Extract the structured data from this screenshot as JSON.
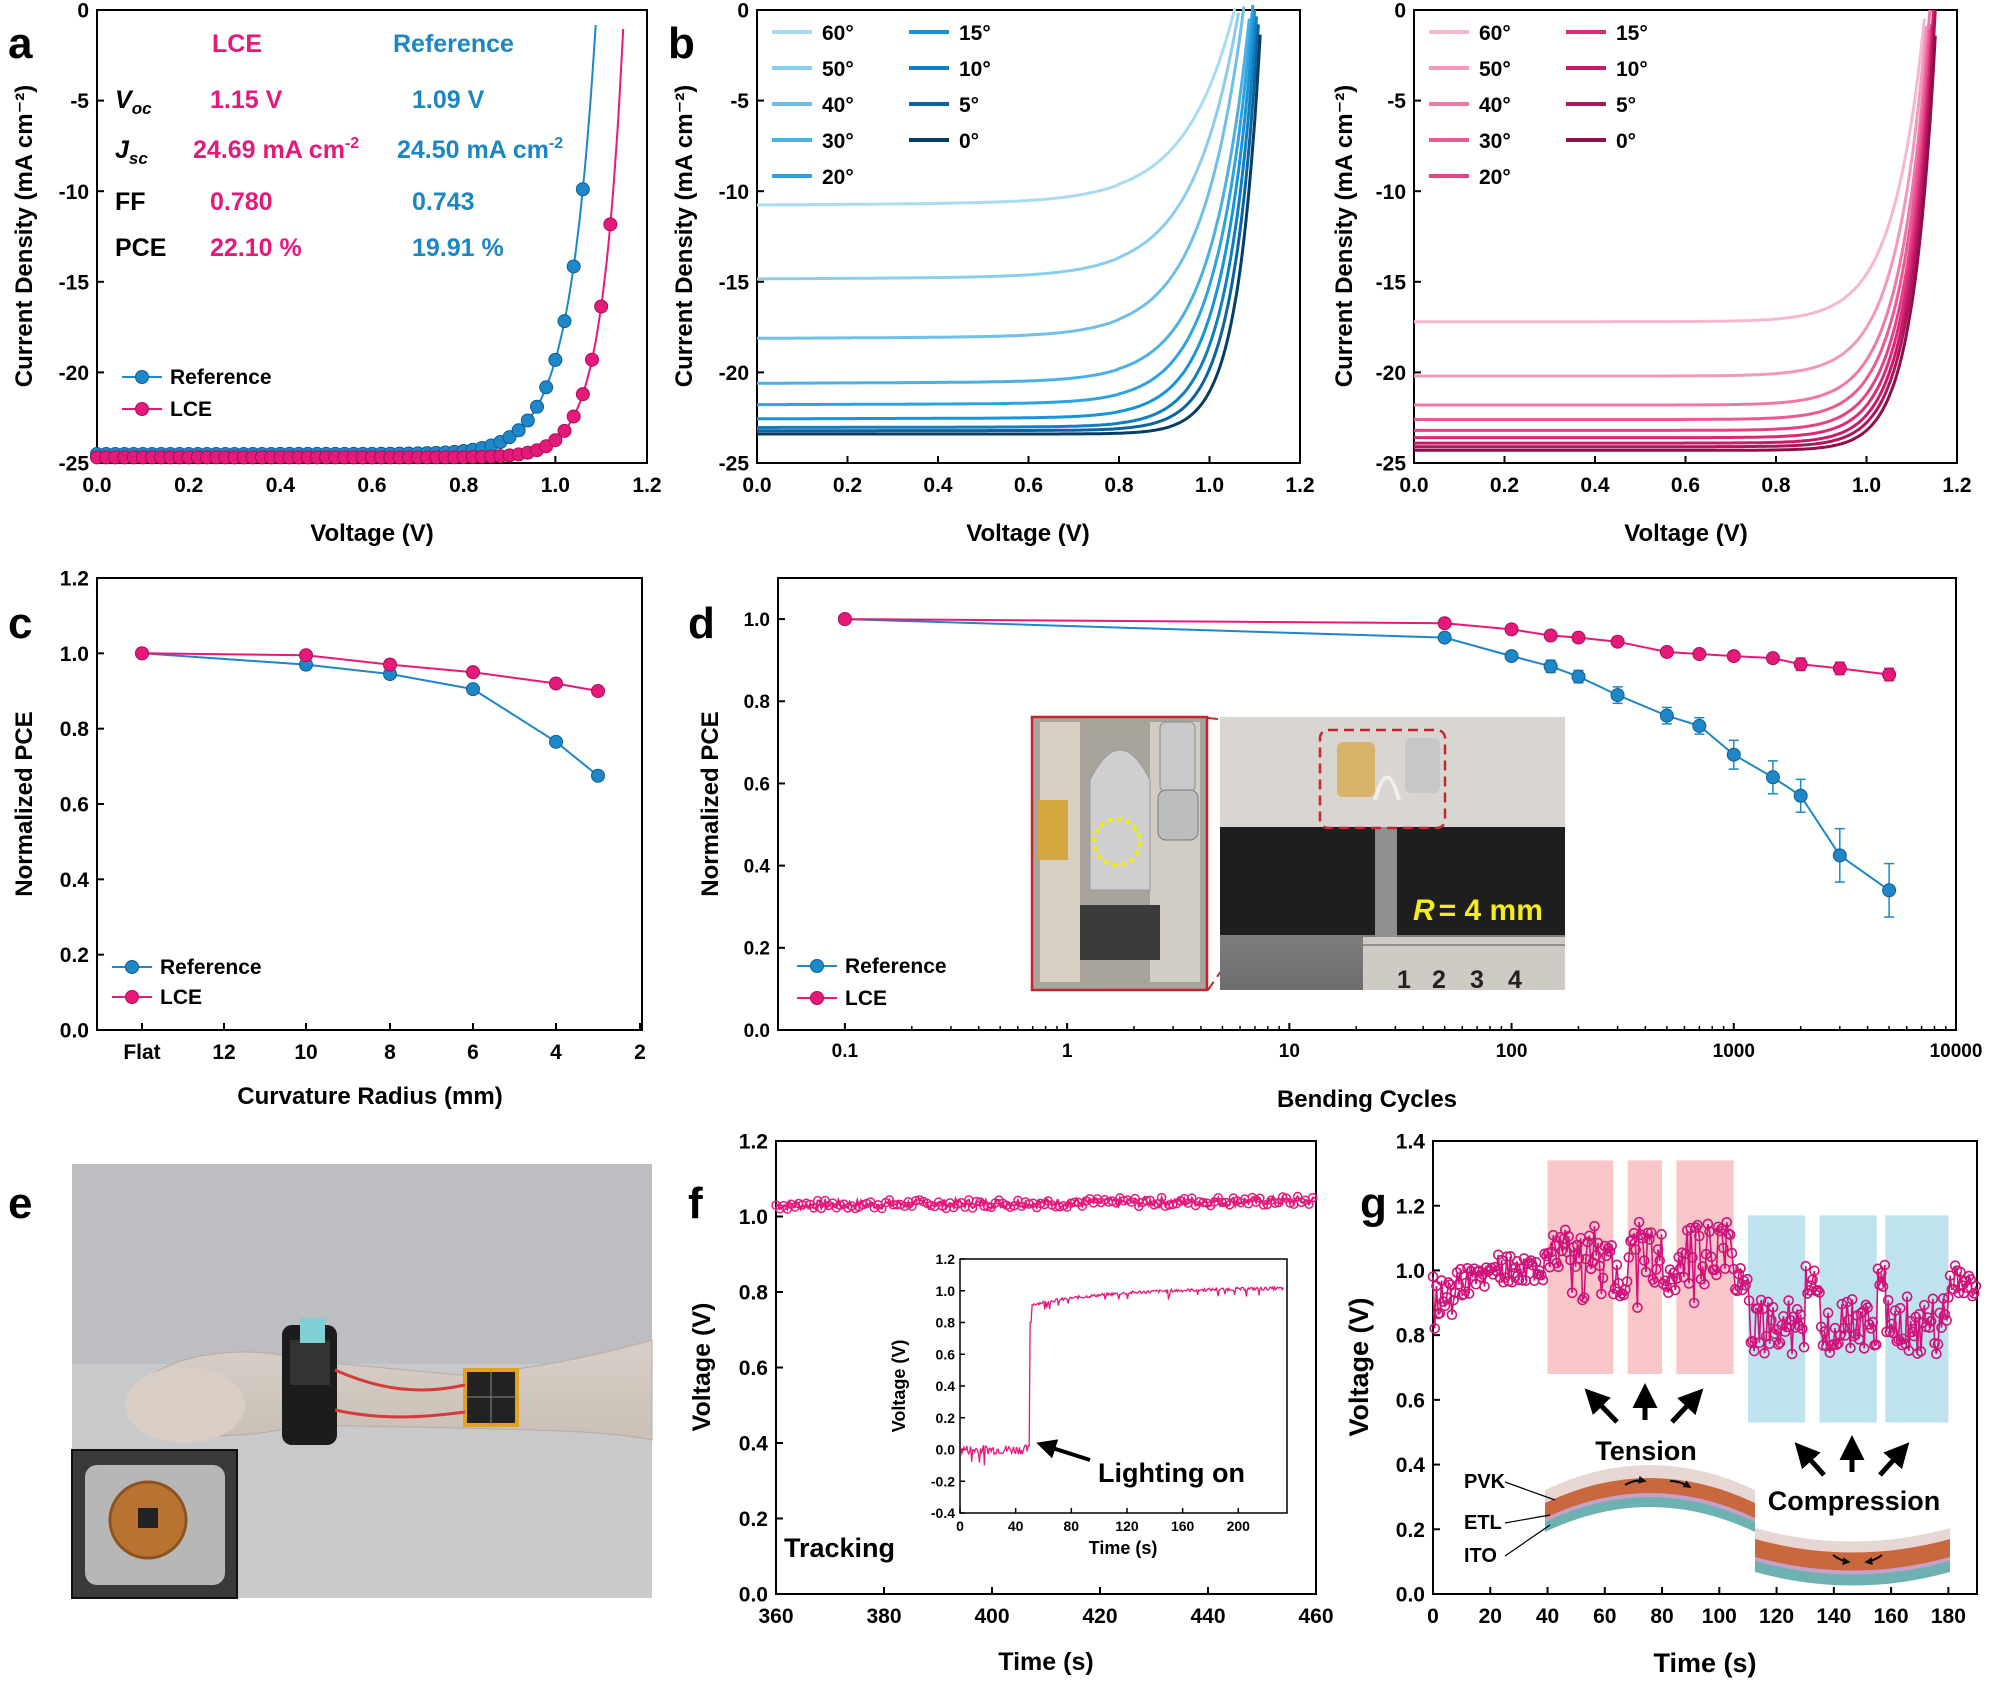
{
  "colors": {
    "pink": "#E6197A",
    "blue": "#1E87C8",
    "textPink": "#E6197A",
    "textBlue": "#1C86C4"
  },
  "panels": {
    "a": "a",
    "b": "b",
    "c": "c",
    "d": "d",
    "e": "e",
    "f": "f",
    "g": "g"
  },
  "chart_data": [
    {
      "id": "a",
      "type": "line",
      "title": "",
      "xlabel": "Voltage (V)",
      "ylabel": "Current Density (mA cm⁻²)",
      "xlim": [
        0,
        1.2
      ],
      "ylim": [
        -25,
        0
      ],
      "xticks": [
        "0.0",
        "0.2",
        "0.4",
        "0.6",
        "0.8",
        "1.0",
        "1.2"
      ],
      "yticks": [
        "-25",
        "-20",
        "-15",
        "-10",
        "-5",
        "0"
      ],
      "legend": [
        "Reference",
        "LCE"
      ],
      "table": {
        "header_lce": "LCE",
        "header_ref": "Reference",
        "rows": [
          {
            "label": "V",
            "sub": "oc",
            "lce": "1.15 V",
            "ref": "1.09 V"
          },
          {
            "label": "J",
            "sub": "sc",
            "lce": "24.69 mA cm",
            "lce_sup": "-2",
            "ref": "24.50 mA cm",
            "ref_sup": "-2"
          },
          {
            "label": "FF",
            "lce": "0.780",
            "ref": "0.743"
          },
          {
            "label": "PCE",
            "lce": "22.10 %",
            "ref": "19.91 %"
          }
        ]
      },
      "series": [
        {
          "name": "Reference",
          "Voc": 1.09,
          "Jsc": -24.5,
          "V0": 0.058
        },
        {
          "name": "LCE",
          "Voc": 1.15,
          "Jsc": -24.69,
          "V0": 0.046
        }
      ]
    },
    {
      "id": "b1",
      "type": "line",
      "xlabel": "Voltage (V)",
      "ylabel": "Current Density (mA cm⁻²)",
      "xlim": [
        0,
        1.2
      ],
      "ylim": [
        -25,
        0
      ],
      "xticks": [
        "0.0",
        "0.2",
        "0.4",
        "0.6",
        "0.8",
        "1.0",
        "1.2"
      ],
      "yticks": [
        "-25",
        "-20",
        "-15",
        "-10",
        "-5",
        "0"
      ],
      "legend": [
        "60°",
        "50°",
        "40°",
        "30°",
        "20°",
        "15°",
        "10°",
        "5°",
        "0°"
      ],
      "series": [
        {
          "name": "60°",
          "Jsc": -10.6,
          "Voc": 1.055
        },
        {
          "name": "50°",
          "Jsc": -14.7,
          "Voc": 1.065
        },
        {
          "name": "40°",
          "Jsc": -18.0,
          "Voc": 1.075
        },
        {
          "name": "30°",
          "Jsc": -20.5,
          "Voc": 1.09
        },
        {
          "name": "20°",
          "Jsc": -21.7,
          "Voc": 1.095
        },
        {
          "name": "15°",
          "Jsc": -22.5,
          "Voc": 1.1
        },
        {
          "name": "10°",
          "Jsc": -23.0,
          "Voc": 1.105
        },
        {
          "name": "5°",
          "Jsc": -23.2,
          "Voc": 1.11
        },
        {
          "name": "0°",
          "Jsc": -23.4,
          "Voc": 1.115
        }
      ]
    },
    {
      "id": "b2",
      "type": "line",
      "xlabel": "Voltage (V)",
      "ylabel": "Current Density (mA cm⁻²)",
      "xlim": [
        0,
        1.2
      ],
      "ylim": [
        -25,
        0
      ],
      "xticks": [
        "0.0",
        "0.2",
        "0.4",
        "0.6",
        "0.8",
        "1.0",
        "1.2"
      ],
      "yticks": [
        "-25",
        "-20",
        "-15",
        "-10",
        "-5",
        "0"
      ],
      "legend": [
        "60°",
        "50°",
        "40°",
        "30°",
        "20°",
        "15°",
        "10°",
        "5°",
        "0°"
      ],
      "series": [
        {
          "name": "60°",
          "Jsc": -17.2,
          "Voc": 1.13
        },
        {
          "name": "50°",
          "Jsc": -20.2,
          "Voc": 1.135
        },
        {
          "name": "40°",
          "Jsc": -21.8,
          "Voc": 1.14
        },
        {
          "name": "30°",
          "Jsc": -22.6,
          "Voc": 1.143
        },
        {
          "name": "20°",
          "Jsc": -23.2,
          "Voc": 1.146
        },
        {
          "name": "15°",
          "Jsc": -23.6,
          "Voc": 1.148
        },
        {
          "name": "10°",
          "Jsc": -23.9,
          "Voc": 1.15
        },
        {
          "name": "5°",
          "Jsc": -24.1,
          "Voc": 1.152
        },
        {
          "name": "0°",
          "Jsc": -24.3,
          "Voc": 1.155
        }
      ]
    },
    {
      "id": "c",
      "type": "line",
      "xlabel": "Curvature Radius (mm)",
      "ylabel": "Normalized PCE",
      "ylim": [
        0,
        1.2
      ],
      "xticks": [
        "Flat",
        "12",
        "10",
        "8",
        "6",
        "4",
        "2"
      ],
      "yticks": [
        "0.0",
        "0.2",
        "0.4",
        "0.6",
        "0.8",
        "1.0",
        "1.2"
      ],
      "x": [
        "Flat",
        10,
        8,
        6,
        4,
        3
      ],
      "series": [
        {
          "name": "Reference",
          "values": [
            1.0,
            0.97,
            0.945,
            0.905,
            0.765,
            0.675
          ]
        },
        {
          "name": "LCE",
          "values": [
            1.0,
            0.995,
            0.97,
            0.95,
            0.92,
            0.9
          ]
        }
      ]
    },
    {
      "id": "d",
      "type": "line",
      "xlabel": "Bending Cycles",
      "ylabel": "Normalized PCE",
      "xscale": "log",
      "xlim": [
        0.05,
        10000
      ],
      "ylim": [
        0,
        1.1
      ],
      "xticks": [
        "0.1",
        "1",
        "10",
        "100",
        "1000",
        "10000"
      ],
      "yticks": [
        "0.0",
        "0.2",
        "0.4",
        "0.6",
        "0.8",
        "1.0"
      ],
      "x": [
        0.1,
        50,
        100,
        150,
        200,
        300,
        500,
        700,
        1000,
        1500,
        2000,
        3000,
        5000
      ],
      "series": [
        {
          "name": "Reference",
          "values": [
            1.0,
            0.955,
            0.91,
            0.885,
            0.86,
            0.815,
            0.765,
            0.74,
            0.67,
            0.615,
            0.57,
            0.425,
            0.34
          ],
          "err": [
            0,
            0,
            0.01,
            0.015,
            0.015,
            0.02,
            0.02,
            0.02,
            0.035,
            0.04,
            0.04,
            0.065,
            0.065
          ]
        },
        {
          "name": "LCE",
          "values": [
            1.0,
            0.99,
            0.975,
            0.96,
            0.955,
            0.945,
            0.92,
            0.915,
            0.91,
            0.905,
            0.89,
            0.88,
            0.865
          ],
          "err": [
            0,
            0,
            0.005,
            0.005,
            0.005,
            0.008,
            0.008,
            0.01,
            0.01,
            0.01,
            0.015,
            0.015,
            0.015
          ]
        }
      ],
      "inset_label": "= 4 mm",
      "inset_label_var": "R",
      "ruler_digits": [
        "1",
        "2",
        "3",
        "4"
      ]
    },
    {
      "id": "f",
      "type": "line",
      "xlabel": "Time (s)",
      "ylabel": "Voltage (V)",
      "xlim": [
        360,
        460
      ],
      "ylim": [
        0,
        1.2
      ],
      "xticks": [
        "360",
        "380",
        "400",
        "420",
        "440",
        "460"
      ],
      "yticks": [
        "0.0",
        "0.2",
        "0.4",
        "0.6",
        "0.8",
        "1.0",
        "1.2"
      ],
      "level": 1.03,
      "annotation": "Tracking",
      "inset": {
        "xlabel": "Time (s)",
        "ylabel": "Voltage (V)",
        "xlim": [
          0,
          235
        ],
        "ylim": [
          -0.4,
          1.2
        ],
        "xticks": [
          "0",
          "40",
          "80",
          "120",
          "160",
          "200"
        ],
        "yticks": [
          "-0.4",
          "-0.2",
          "0.0",
          "0.2",
          "0.4",
          "0.6",
          "0.8",
          "1.0",
          "1.2"
        ],
        "event_time": 50,
        "annotation": "Lighting on"
      }
    },
    {
      "id": "g",
      "type": "line",
      "xlabel": "Time (s)",
      "ylabel": "Voltage (V)",
      "xlim": [
        0,
        190
      ],
      "ylim": [
        0,
        1.4
      ],
      "xticks": [
        "0",
        "20",
        "40",
        "60",
        "80",
        "100",
        "120",
        "140",
        "160",
        "180"
      ],
      "yticks": [
        "0.0",
        "0.2",
        "0.4",
        "0.6",
        "0.8",
        "1.0",
        "1.2",
        "1.4"
      ],
      "tension_windows": [
        [
          40,
          63
        ],
        [
          68,
          80
        ],
        [
          85,
          105
        ]
      ],
      "compression_windows": [
        [
          110,
          130
        ],
        [
          135,
          155
        ],
        [
          158,
          180
        ]
      ],
      "labels": {
        "tension": "Tension",
        "compression": "Compression",
        "pvk": "PVK",
        "etl": "ETL",
        "ito": "ITO"
      }
    }
  ]
}
